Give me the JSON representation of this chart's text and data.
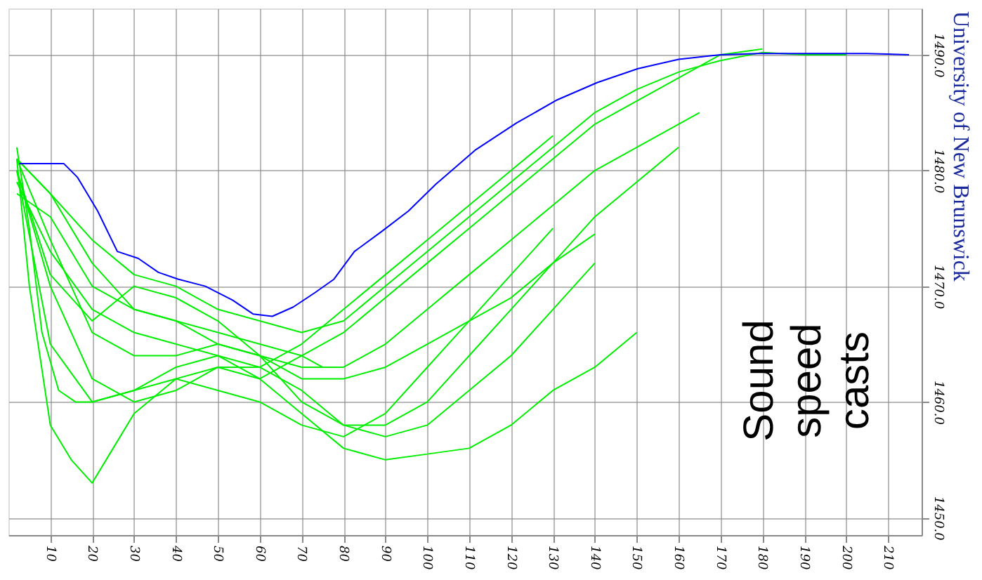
{
  "chart_data": {
    "type": "line",
    "xlim": [
      0,
      218
    ],
    "ylim": [
      1448.5,
      1494
    ],
    "xticks": [
      10,
      20,
      30,
      40,
      50,
      60,
      70,
      80,
      90,
      100,
      110,
      120,
      130,
      140,
      150,
      160,
      170,
      180,
      190,
      200,
      210
    ],
    "yticks": [
      {
        "value": 1450,
        "label": "1450.0"
      },
      {
        "value": 1460,
        "label": "1460.0"
      },
      {
        "value": 1470,
        "label": "1470.0"
      },
      {
        "value": 1480,
        "label": "1480.0"
      },
      {
        "value": 1490,
        "label": "1490.0"
      }
    ],
    "grid": true,
    "marker": "none",
    "line_style": "solid",
    "annotations": [
      "Sound speed casts",
      "University of New Brunswick"
    ],
    "series": [
      {
        "color": "#00ee00",
        "x": [
          2,
          5,
          8,
          12,
          16,
          20,
          25,
          30,
          35,
          40,
          45,
          50,
          55,
          60,
          65,
          70,
          75
        ],
        "values": [
          1482,
          1475,
          1466,
          1461,
          1460,
          1460,
          1460.5,
          1461,
          1462,
          1463,
          1463.5,
          1464,
          1463,
          1462,
          1463,
          1464,
          1463
        ]
      },
      {
        "color": "#00ee00",
        "x": [
          2,
          10,
          20,
          30,
          40,
          50,
          60,
          70,
          80,
          90,
          100,
          110,
          120,
          130,
          140,
          150,
          160,
          170,
          180
        ],
        "values": [
          1481,
          1478,
          1472,
          1468,
          1467,
          1466,
          1465,
          1464,
          1466,
          1469,
          1472,
          1475,
          1478,
          1481,
          1484,
          1486,
          1488,
          1490,
          1490.5
        ]
      },
      {
        "color": "#00ee00",
        "x": [
          2,
          10,
          20,
          30,
          40,
          50,
          60,
          70,
          80,
          90,
          100,
          110,
          120,
          130,
          140,
          150
        ],
        "values": [
          1480,
          1470,
          1462,
          1460,
          1461,
          1463,
          1462,
          1459,
          1456,
          1455,
          1455.5,
          1456,
          1458,
          1461,
          1463,
          1466
        ]
      },
      {
        "color": "#00ee00",
        "x": [
          2,
          10,
          20,
          30,
          40,
          50,
          60,
          70,
          80,
          90,
          100,
          110,
          120,
          130,
          140
        ],
        "values": [
          1479,
          1473,
          1468,
          1466,
          1465,
          1464,
          1463,
          1461,
          1458,
          1457,
          1458,
          1461,
          1464,
          1468,
          1472
        ]
      },
      {
        "color": "#00ee00",
        "x": [
          2,
          10,
          20,
          30,
          40,
          50,
          60,
          70,
          80,
          90,
          100,
          110,
          120,
          130,
          140
        ],
        "values": [
          1478,
          1476,
          1470,
          1468,
          1467,
          1465,
          1464,
          1462,
          1462,
          1463,
          1465,
          1467,
          1469,
          1472,
          1474.5
        ]
      },
      {
        "color": "#00ee00",
        "x": [
          2,
          10,
          20,
          30,
          40,
          50,
          60,
          70,
          80,
          90,
          100,
          110,
          120,
          130,
          140,
          150,
          160,
          165
        ],
        "values": [
          1481,
          1474,
          1466,
          1464,
          1464,
          1465,
          1464,
          1463,
          1463,
          1465,
          1468,
          1471,
          1474,
          1477,
          1480,
          1482,
          1484,
          1485
        ]
      },
      {
        "color": "#00ee00",
        "x": [
          2,
          5,
          10,
          15,
          20,
          25,
          30,
          40,
          50,
          60,
          70,
          80,
          90,
          100,
          110,
          120,
          130
        ],
        "values": [
          1481,
          1470,
          1458,
          1455,
          1453,
          1456,
          1459,
          1462,
          1463,
          1463,
          1465,
          1468,
          1471,
          1474,
          1477,
          1480,
          1483
        ]
      },
      {
        "color": "#00ee00",
        "x": [
          2,
          10,
          20,
          30,
          40,
          50,
          60,
          70,
          80,
          90,
          100,
          110,
          120,
          130,
          140,
          150,
          160
        ],
        "values": [
          1480,
          1471,
          1467,
          1470,
          1469,
          1467,
          1464,
          1460,
          1458,
          1458,
          1460,
          1464,
          1468,
          1472,
          1476,
          1479,
          1482
        ]
      },
      {
        "color": "#00ee00",
        "x": [
          2,
          10,
          20,
          30,
          40,
          50,
          60,
          70,
          80,
          90,
          100,
          110,
          120,
          130
        ],
        "values": [
          1480,
          1465,
          1460,
          1461,
          1462,
          1461,
          1460,
          1458,
          1457,
          1459,
          1463,
          1467,
          1471,
          1475
        ]
      },
      {
        "color": "#00ee00",
        "x": [
          2,
          10,
          20,
          30,
          40,
          50,
          60,
          70,
          80,
          90,
          100,
          110,
          120,
          130,
          140,
          150,
          160,
          170,
          180,
          190,
          200
        ],
        "values": [
          1481,
          1478,
          1474,
          1471,
          1470,
          1468,
          1467,
          1466,
          1467,
          1470,
          1473,
          1476,
          1479,
          1482,
          1485,
          1487,
          1488.5,
          1489.5,
          1490.2,
          1490,
          1490
        ]
      },
      {
        "color": "#0000ff",
        "x": [
          2.6,
          13.2,
          16.5,
          21.3,
          26,
          31,
          35.8,
          40.6,
          47,
          53.5,
          58.4,
          63,
          68,
          73,
          77.7,
          82.6,
          89,
          95.5,
          102,
          111.6,
          121.3,
          131,
          140.6,
          150.3,
          160,
          170,
          179,
          192,
          205,
          215
        ],
        "values": [
          1480.6,
          1480.6,
          1479.4,
          1476.5,
          1473,
          1472.4,
          1471.2,
          1470.6,
          1470,
          1468.8,
          1467.6,
          1467.4,
          1468.2,
          1469.4,
          1470.6,
          1473,
          1474.7,
          1476.5,
          1478.8,
          1481.8,
          1484.1,
          1486.1,
          1487.6,
          1488.8,
          1489.6,
          1490,
          1490.1,
          1490.1,
          1490.1,
          1490
        ]
      }
    ]
  }
}
